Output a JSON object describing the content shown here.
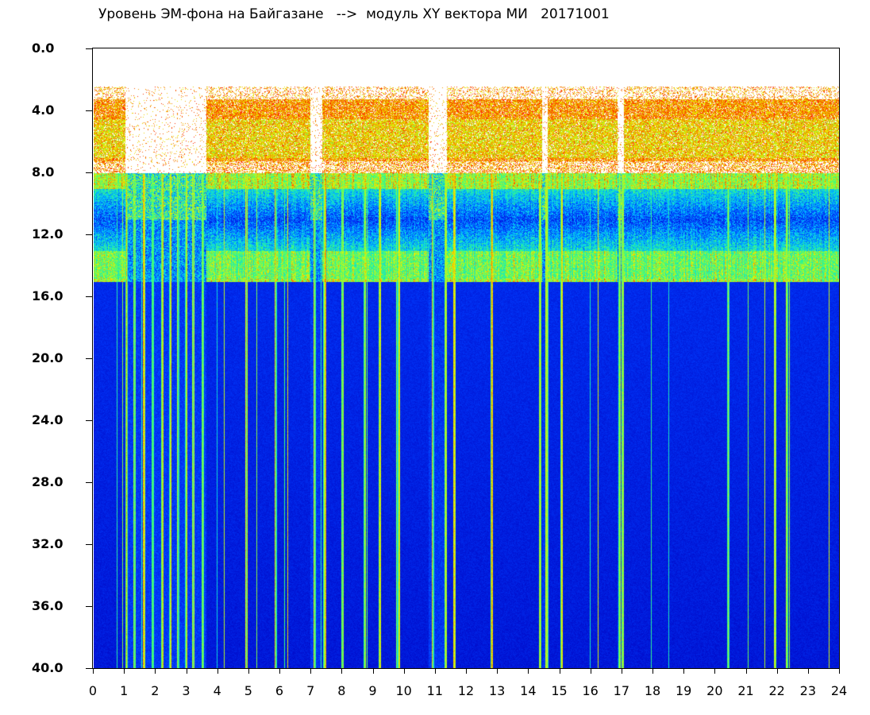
{
  "title": "Уровень ЭМ-фона на Байгазане   -->  модуль XY вектора МИ   20171001",
  "chart_data": {
    "type": "heatmap",
    "title": "Уровень ЭМ-фона на Байгазане   -->  модуль XY вектора МИ   20171001",
    "xlabel": "",
    "ylabel": "",
    "xlim": [
      0,
      24
    ],
    "ylim": [
      0,
      40
    ],
    "y_inverted": true,
    "x_ticks": [
      "0",
      "1",
      "2",
      "3",
      "4",
      "5",
      "6",
      "7",
      "8",
      "9",
      "10",
      "11",
      "12",
      "13",
      "14",
      "15",
      "16",
      "17",
      "18",
      "19",
      "20",
      "21",
      "22",
      "23",
      "24"
    ],
    "y_ticks": [
      "0.0",
      "4.0",
      "8.0",
      "12.0",
      "16.0",
      "20.0",
      "24.0",
      "28.0",
      "32.0",
      "36.0",
      "40.0"
    ],
    "colorscale": [
      "#0000cc",
      "#0040ff",
      "#00c8ff",
      "#40ff80",
      "#e8f000",
      "#ff2000"
    ],
    "quiet_intervals_hours": [
      [
        1.0,
        3.6
      ],
      [
        6.95,
        7.35
      ],
      [
        10.75,
        11.35
      ],
      [
        14.4,
        14.6
      ],
      [
        16.85,
        17.05
      ]
    ],
    "upper_band_y": [
      2.5,
      8.0
    ],
    "middle_band_y": [
      8.0,
      15.0
    ],
    "background_level_y": [
      15.0,
      40.0
    ]
  }
}
